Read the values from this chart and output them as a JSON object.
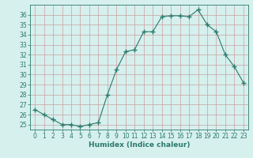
{
  "x": [
    0,
    1,
    2,
    3,
    4,
    5,
    6,
    7,
    8,
    9,
    10,
    11,
    12,
    13,
    14,
    15,
    16,
    17,
    18,
    19,
    20,
    21,
    22,
    23
  ],
  "y": [
    26.5,
    26.0,
    25.5,
    25.0,
    25.0,
    24.8,
    25.0,
    25.2,
    28.0,
    30.5,
    32.3,
    32.5,
    34.3,
    34.3,
    35.8,
    35.9,
    35.9,
    35.8,
    36.5,
    35.0,
    34.3,
    32.0,
    30.8,
    29.2
  ],
  "line_color": "#2a7a6a",
  "marker": "+",
  "marker_size": 4,
  "bg_color": "#d6f0ee",
  "grid_color": "#c8a0a0",
  "xlabel": "Humidex (Indice chaleur)",
  "xlim": [
    -0.5,
    23.5
  ],
  "ylim": [
    24.5,
    37.0
  ],
  "yticks": [
    25,
    26,
    27,
    28,
    29,
    30,
    31,
    32,
    33,
    34,
    35,
    36
  ],
  "xticks": [
    0,
    1,
    2,
    3,
    4,
    5,
    6,
    7,
    8,
    9,
    10,
    11,
    12,
    13,
    14,
    15,
    16,
    17,
    18,
    19,
    20,
    21,
    22,
    23
  ],
  "tick_fontsize": 5.5,
  "label_fontsize": 6.5
}
